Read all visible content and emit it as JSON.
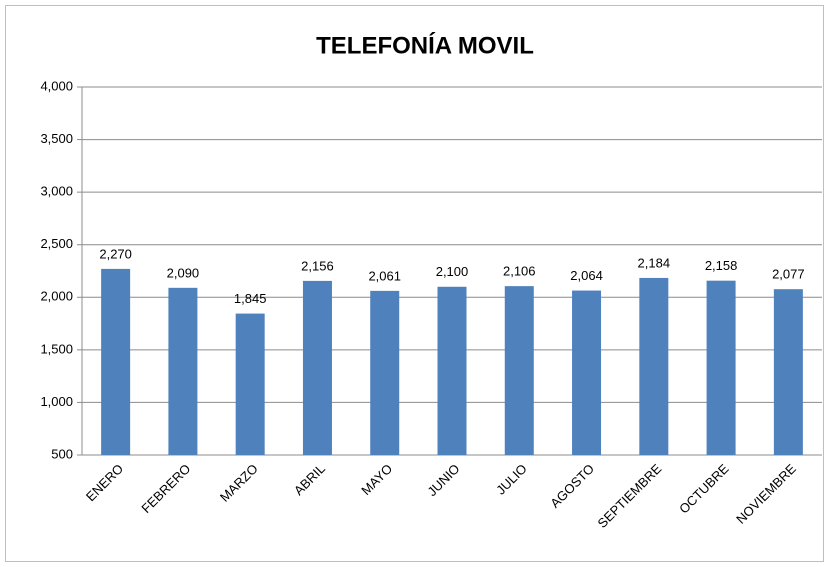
{
  "chart_data": {
    "type": "bar",
    "title": "TELEFONÍA MOVIL",
    "categories": [
      "ENERO",
      "FEBRERO",
      "MARZO",
      "ABRIL",
      "MAYO",
      "JUNIO",
      "JULIO",
      "AGOSTO",
      "SEPTIEMBRE",
      "OCTUBRE",
      "NOVIEMBRE"
    ],
    "values": [
      2270,
      2090,
      1845,
      2156,
      2061,
      2100,
      2106,
      2064,
      2184,
      2158,
      2077
    ],
    "value_labels": [
      "2,270",
      "2,090",
      "1,845",
      "2,156",
      "2,061",
      "2,100",
      "2,106",
      "2,064",
      "2,184",
      "2,158",
      "2,077"
    ],
    "color": "#4f81bd",
    "ylim": [
      500,
      4000
    ],
    "yticks": [
      500,
      {
        "value": 1000,
        "label": "1,000"
      },
      {
        "value": 1500,
        "label": "1,500"
      },
      {
        "value": 2000,
        "label": "2,000"
      },
      {
        "value": 2500,
        "label": "2,500"
      },
      {
        "value": 3000,
        "label": "3,000"
      },
      {
        "value": 3500,
        "label": "3,500"
      },
      {
        "value": 4000,
        "label": "4,000"
      }
    ],
    "grid": true
  }
}
